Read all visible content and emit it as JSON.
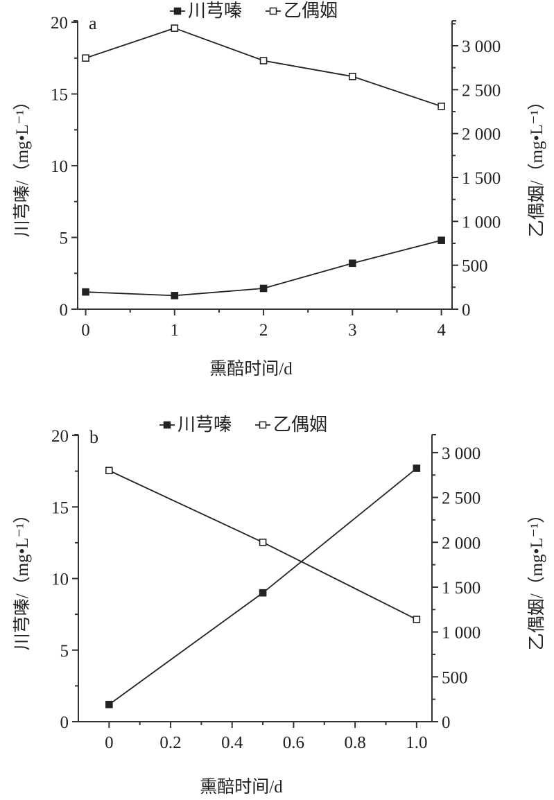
{
  "chart_data": [
    {
      "type": "line",
      "panel": "a",
      "xlabel": "熏醅时间/d",
      "ylabel_left": "川芎嗪/（mg•L⁻¹）",
      "ylabel_right": "乙偶姻/（mg•L⁻¹）",
      "xlim": [
        -0.09,
        4.12
      ],
      "xticks": [
        0,
        1,
        2,
        3,
        4
      ],
      "xtick_labels": [
        "0",
        "1",
        "2",
        "3",
        "4"
      ],
      "ylim_left": [
        0,
        20.1
      ],
      "yticks_left": [
        0,
        5,
        10,
        15,
        20
      ],
      "ytick_labels_left": [
        "0",
        "5",
        "10",
        "15",
        "20"
      ],
      "ylim_right": [
        0,
        3284
      ],
      "yticks_right": [
        0,
        500,
        1000,
        1500,
        2000,
        2500,
        3000
      ],
      "ytick_labels_right": [
        "0",
        "500",
        "1 000",
        "1 500",
        "2 000",
        "2 500",
        "3 000"
      ],
      "legend_position": "top-center",
      "series": [
        {
          "name": "川芎嗪",
          "axis": "left",
          "marker": "filled-square",
          "x": [
            0,
            1,
            2,
            3,
            4
          ],
          "values": [
            1.2,
            0.95,
            1.45,
            3.2,
            4.8
          ]
        },
        {
          "name": "乙偶姻",
          "axis": "right",
          "marker": "open-square",
          "x": [
            0,
            1,
            2,
            3,
            4
          ],
          "values": [
            2860,
            3200,
            2830,
            2650,
            2310
          ]
        }
      ]
    },
    {
      "type": "line",
      "panel": "b",
      "xlabel": "熏醅时间/d",
      "ylabel_left": "川芎嗪/（mg•L⁻¹）",
      "ylabel_right": "乙偶姻/（mg•L⁻¹）",
      "xlim": [
        -0.1,
        1.05
      ],
      "xticks": [
        0,
        0.2,
        0.4,
        0.6,
        0.8,
        1.0
      ],
      "xtick_labels": [
        "0",
        "0.2",
        "0.4",
        "0.6",
        "0.8",
        "1.0"
      ],
      "ylim_left": [
        0,
        20.05
      ],
      "yticks_left": [
        0,
        5,
        10,
        15,
        20
      ],
      "ytick_labels_left": [
        "0",
        "5",
        "10",
        "15",
        "20"
      ],
      "ylim_right": [
        0,
        3200
      ],
      "yticks_right": [
        0,
        500,
        1000,
        1500,
        2000,
        2500,
        3000
      ],
      "ytick_labels_right": [
        "0",
        "500",
        "1 000",
        "1 500",
        "2 000",
        "2 500",
        "3 000"
      ],
      "legend_position": "top-center",
      "series": [
        {
          "name": "川芎嗪",
          "axis": "left",
          "marker": "filled-square",
          "x": [
            0,
            0.5,
            1.0
          ],
          "values": [
            1.2,
            9.0,
            17.7
          ]
        },
        {
          "name": "乙偶姻",
          "axis": "right",
          "marker": "open-square",
          "x": [
            0,
            0.5,
            1.0
          ],
          "values": [
            2800,
            2000,
            1140
          ]
        }
      ]
    }
  ]
}
